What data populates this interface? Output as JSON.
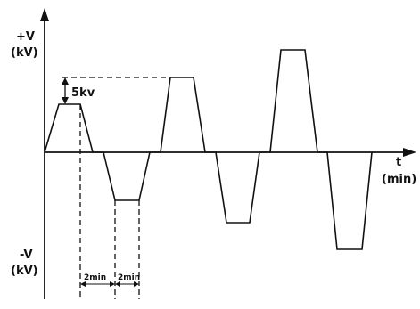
{
  "y_axis": {
    "positive_label_line1": "+V",
    "positive_label_line2": "(kV)",
    "negative_label_line1": "-V",
    "negative_label_line2": "(kV)"
  },
  "x_axis": {
    "label_line1": "t",
    "label_line2": "(min)"
  },
  "annotations": {
    "step_label": "5kv",
    "interval_label_1": "2min",
    "interval_label_2": "2min"
  }
}
